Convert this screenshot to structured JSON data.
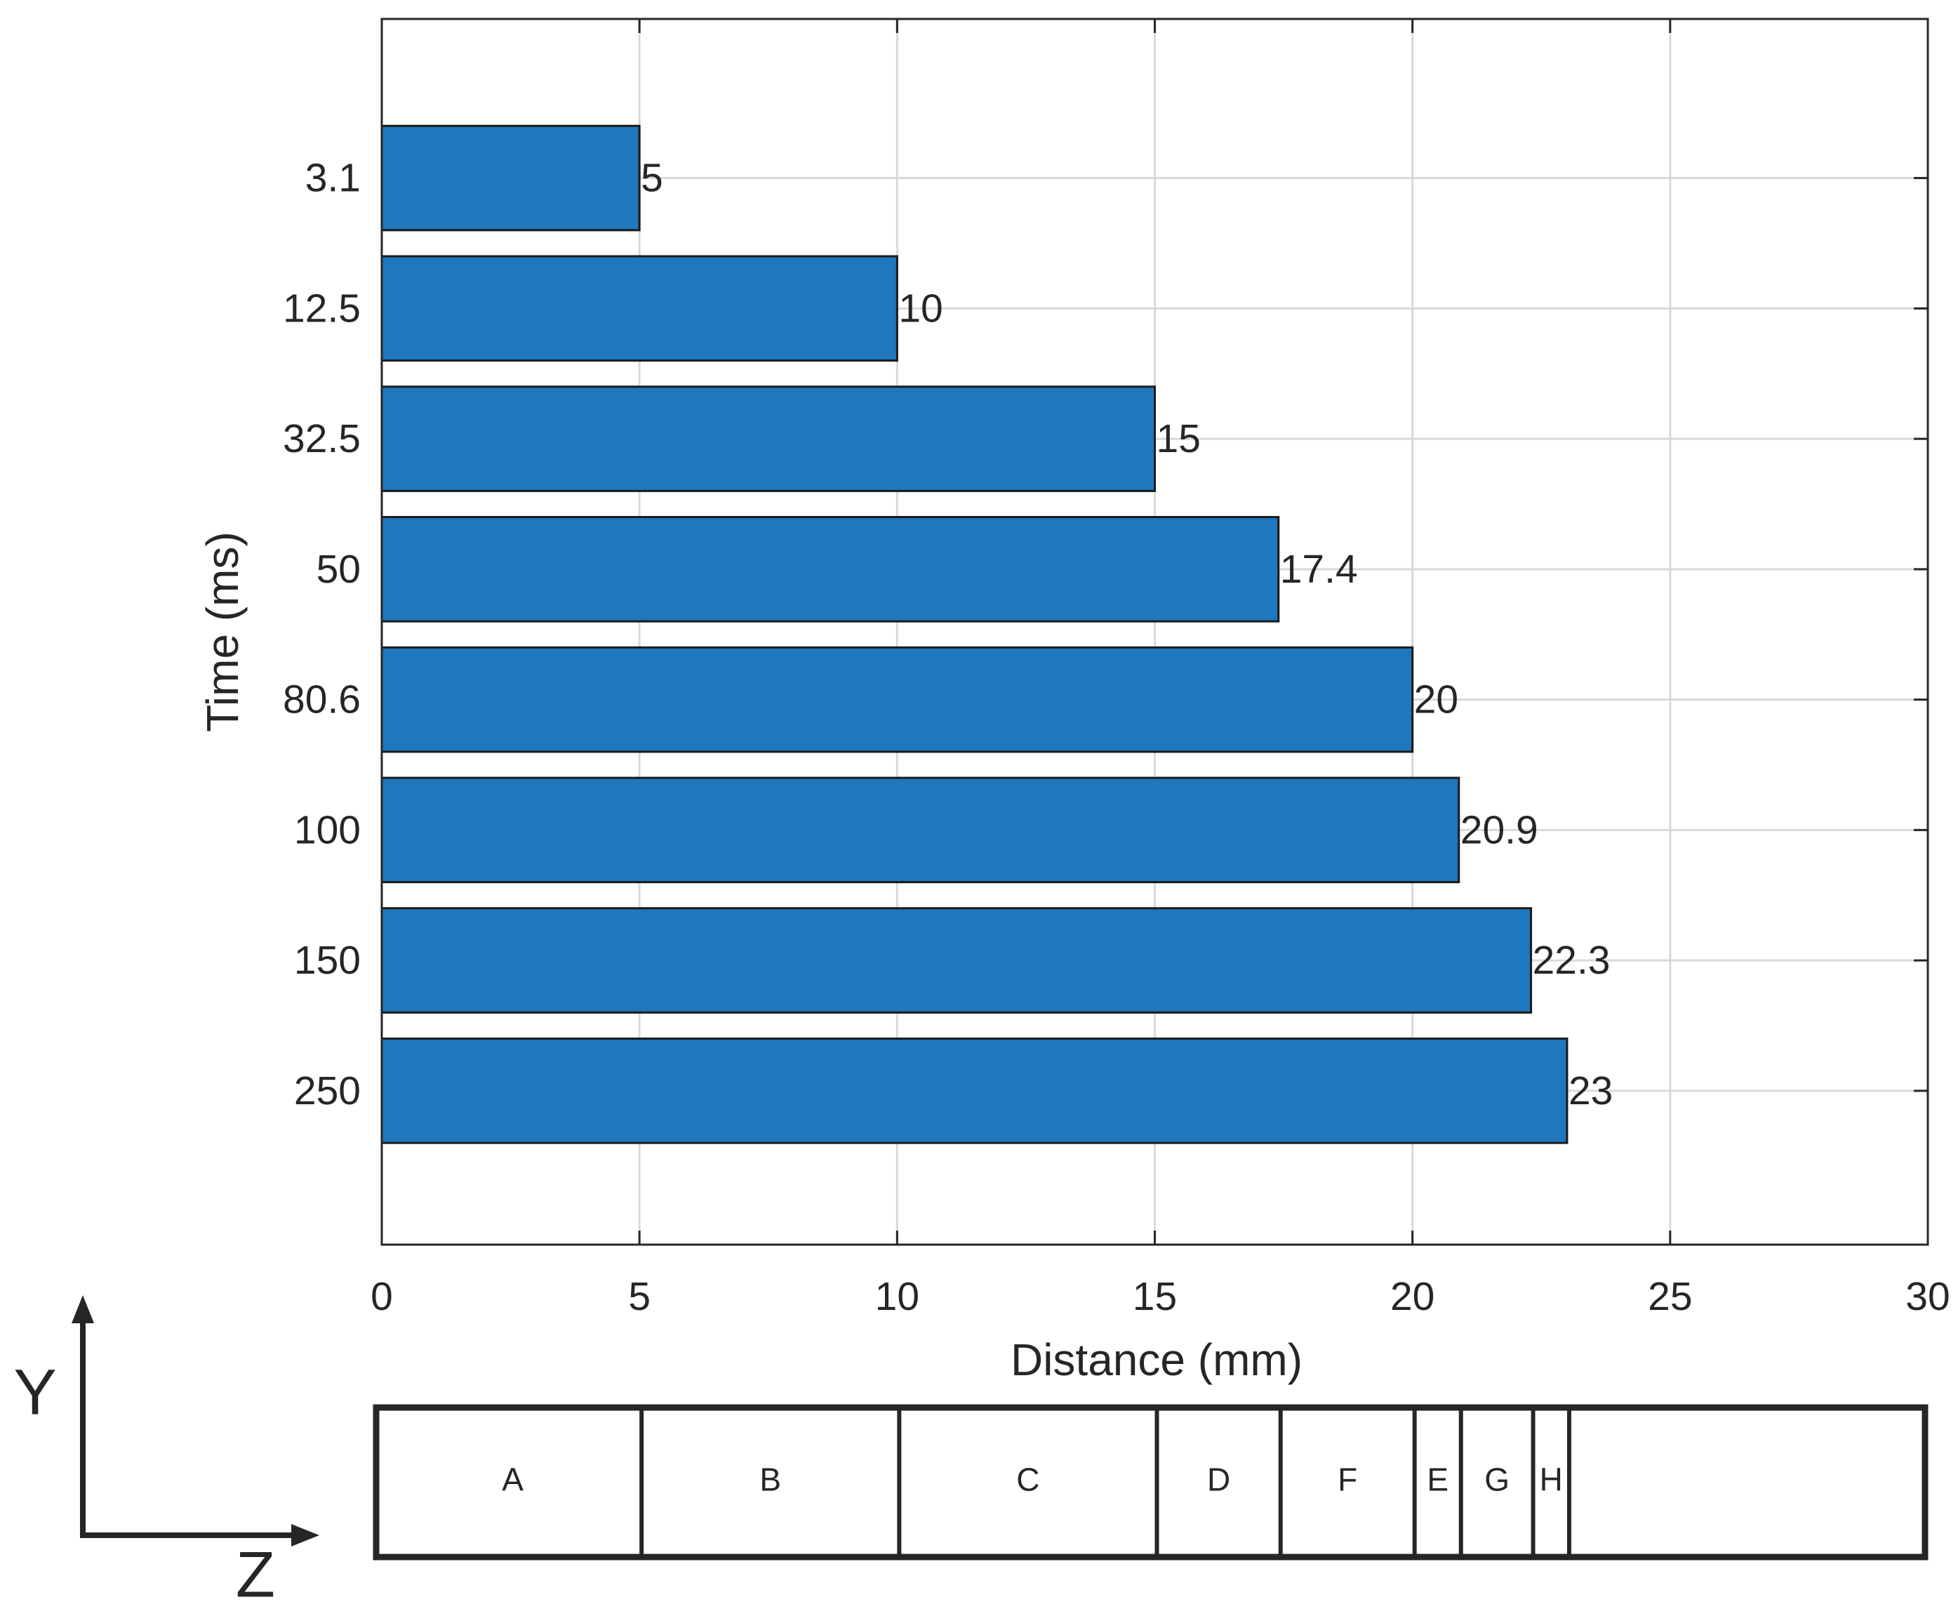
{
  "chart_data": {
    "type": "barh",
    "ylabel": "Time (ms)",
    "xlabel": "Distance (mm)",
    "categories": [
      "3.1",
      "12.5",
      "32.5",
      "50",
      "80.6",
      "100",
      "150",
      "250"
    ],
    "values": [
      5,
      10,
      15,
      17.4,
      20,
      20.9,
      22.3,
      23
    ],
    "color": "#1f77bd",
    "xlim": [
      0,
      30
    ],
    "xticks": [
      0,
      5,
      10,
      15,
      20,
      25,
      30
    ],
    "grid": true
  },
  "strip": {
    "labels": [
      "A",
      "B",
      "C",
      "D",
      "F",
      "E",
      "G",
      "H"
    ]
  },
  "orientation": {
    "y": "Y",
    "z": "Z"
  }
}
